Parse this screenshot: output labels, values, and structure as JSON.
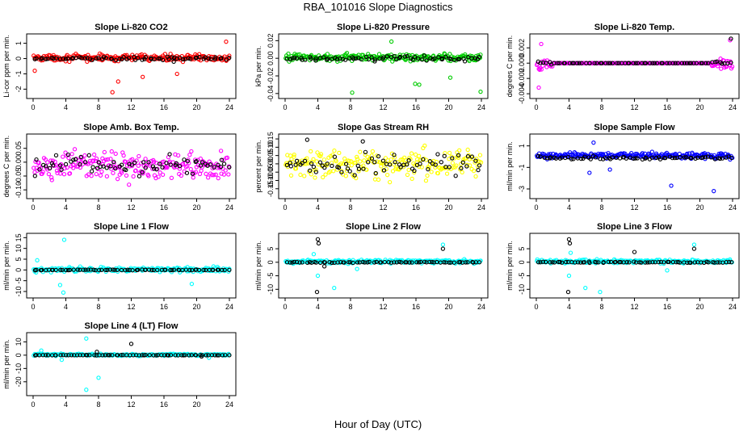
{
  "figure": {
    "title": "RBA_101016  Slope Diagnostics",
    "xlabel": "Hour of Day (UTC)"
  },
  "chart_data": [
    {
      "type": "scatter",
      "title": "Slope Li-820 CO2",
      "ylabel": "Li-cor ppm per min.",
      "xlim": [
        0,
        24
      ],
      "ylim": [
        -2.4,
        1.4
      ],
      "xticks": [
        "0",
        "4",
        "8",
        "12",
        "16",
        "20",
        "24"
      ],
      "yticks": [
        "-2",
        "-1",
        "0",
        "1"
      ],
      "series": [
        {
          "color": "#ff0000",
          "spread": 0.3,
          "center": 0.05,
          "outliers": [
            [
              9.7,
              -2.2
            ],
            [
              0.2,
              -0.8
            ],
            [
              10.4,
              -1.5
            ],
            [
              13.4,
              -1.2
            ],
            [
              17.6,
              -1.0
            ],
            [
              23.6,
              1.1
            ]
          ]
        },
        {
          "color": "#000000",
          "spread": 0.15,
          "center": 0.0,
          "outliers": [
            [
              17.2,
              -0.2
            ]
          ]
        }
      ]
    },
    {
      "type": "scatter",
      "title": "Slope Li-820 Pressure",
      "ylabel": "kPa per min.",
      "xlim": [
        0,
        24
      ],
      "ylim": [
        -0.042,
        0.024
      ],
      "xticks": [
        "0",
        "4",
        "8",
        "12",
        "16",
        "20",
        "24"
      ],
      "yticks": [
        "-0.04",
        "-0.02",
        "0.00",
        "0.02"
      ],
      "series": [
        {
          "color": "#00cc00",
          "spread": 0.006,
          "center": 0.001,
          "outliers": [
            [
              8.2,
              -0.039
            ],
            [
              15.9,
              -0.029
            ],
            [
              16.4,
              -0.03
            ],
            [
              23.9,
              -0.038
            ],
            [
              13.0,
              0.019
            ],
            [
              20.2,
              -0.022
            ]
          ]
        },
        {
          "color": "#000000",
          "spread": 0.004,
          "center": 0.0,
          "outliers": []
        }
      ]
    },
    {
      "type": "scatter",
      "title": "Slope Li-820 Temp.",
      "ylabel": "degrees C per min.",
      "xlim": [
        0,
        24
      ],
      "ylim": [
        -0.0042,
        0.0034
      ],
      "xticks": [
        "0",
        "4",
        "8",
        "12",
        "16",
        "20",
        "24"
      ],
      "yticks": [
        "-0.004",
        "-0.002",
        "0.000",
        "0.002"
      ],
      "series": [
        {
          "color": "#ff00ff",
          "spread": 0.0011,
          "center": -0.0001,
          "edge": [
            0,
            2.0,
            21.4,
            24
          ],
          "flat": 0.0,
          "outliers": [
            [
              0.6,
              0.0025
            ],
            [
              0.3,
              -0.0032
            ],
            [
              23.7,
              0.003
            ]
          ]
        },
        {
          "color": "#000000",
          "spread": 0.0004,
          "center": 0.0,
          "edge": [
            0,
            2.0,
            21.4,
            24
          ],
          "flat": 0.0,
          "outliers": [
            [
              23.8,
              0.0032
            ]
          ]
        }
      ]
    },
    {
      "type": "scatter",
      "title": "Slope Amb. Box Temp.",
      "ylabel": "degrees C per min.",
      "xlim": [
        0,
        24
      ],
      "ylim": [
        -0.12,
        0.09
      ],
      "xticks": [
        "0",
        "4",
        "8",
        "12",
        "16",
        "20",
        "24"
      ],
      "yticks": [
        "-0.10",
        "-0.05",
        "0.00",
        "0.05"
      ],
      "series": [
        {
          "color": "#ff00ff",
          "spread": 0.07,
          "center": -0.015,
          "outliers": []
        },
        {
          "color": "#000000",
          "spread": 0.05,
          "center": -0.01,
          "outliers": []
        }
      ]
    },
    {
      "type": "scatter",
      "title": "Slope Gas Stream RH",
      "ylabel": "percent per min.",
      "xlim": [
        0,
        24
      ],
      "ylim": [
        -0.19,
        0.16
      ],
      "xticks": [
        "0",
        "4",
        "8",
        "12",
        "16",
        "20",
        "24"
      ],
      "yticks": [
        "-0.15",
        "-0.10",
        "-0.05",
        "0.00",
        "0.05",
        "0.10",
        "0.15"
      ],
      "series": [
        {
          "color": "#ffff00",
          "spread": 0.13,
          "center": 0.0,
          "outliers": []
        },
        {
          "color": "#000000",
          "spread": 0.09,
          "center": 0.0,
          "outliers": [
            [
              2.7,
              0.145
            ],
            [
              9.5,
              0.135
            ]
          ]
        }
      ]
    },
    {
      "type": "scatter",
      "title": "Slope Sample Flow",
      "ylabel": "ml/min per min.",
      "xlim": [
        0,
        24
      ],
      "ylim": [
        -3.6,
        1.8
      ],
      "xticks": [
        "0",
        "4",
        "8",
        "12",
        "16",
        "20",
        "24"
      ],
      "yticks": [
        "-3",
        "-1",
        "1"
      ],
      "series": [
        {
          "color": "#0000ff",
          "spread": 0.4,
          "center": 0.1,
          "outliers": [
            [
              6.5,
              -1.5
            ],
            [
              16.5,
              -2.7
            ],
            [
              21.7,
              -3.2
            ],
            [
              9.0,
              -1.2
            ],
            [
              7.0,
              1.3
            ]
          ]
        },
        {
          "color": "#000000",
          "spread": 0.25,
          "center": -0.1,
          "outliers": []
        }
      ]
    },
    {
      "type": "scatter",
      "title": "Slope Line 1 Flow",
      "ylabel": "ml/min per min.",
      "xlim": [
        0,
        24
      ],
      "ylim": [
        -11.5,
        15.5
      ],
      "xticks": [
        "0",
        "4",
        "8",
        "12",
        "16",
        "20",
        "24"
      ],
      "yticks": [
        "-10",
        "-5",
        "0",
        "5",
        "10",
        "15"
      ],
      "series": [
        {
          "color": "#00ffff",
          "spread": 1.5,
          "center": 0.2,
          "outliers": [
            [
              3.8,
              14.0
            ],
            [
              3.7,
              -10.5
            ],
            [
              3.3,
              -7.0
            ],
            [
              19.4,
              -6.5
            ],
            [
              0.5,
              4.5
            ]
          ]
        },
        {
          "color": "#000000",
          "spread": 0.2,
          "center": 0.0,
          "outliers": []
        }
      ]
    },
    {
      "type": "scatter",
      "title": "Slope Line 2 Flow",
      "ylabel": "ml/min per min.",
      "xlim": [
        0,
        24
      ],
      "ylim": [
        -12,
        9.5
      ],
      "xticks": [
        "0",
        "4",
        "8",
        "12",
        "16",
        "20",
        "24"
      ],
      "yticks": [
        "-10",
        "-5",
        "0",
        "5"
      ],
      "series": [
        {
          "color": "#00ffff",
          "spread": 1.0,
          "center": 0.3,
          "outliers": [
            [
              4.0,
              -5.0
            ],
            [
              6.0,
              -9.5
            ],
            [
              19.3,
              6.5
            ],
            [
              3.5,
              3.0
            ],
            [
              8.8,
              -2.5
            ]
          ]
        },
        {
          "color": "#000000",
          "spread": 0.3,
          "center": 0.0,
          "outliers": [
            [
              4.0,
              8.5
            ],
            [
              4.1,
              7.0
            ],
            [
              3.9,
              -11.0
            ],
            [
              19.3,
              5.0
            ],
            [
              4.8,
              -1.5
            ]
          ]
        }
      ]
    },
    {
      "type": "scatter",
      "title": "Slope Line 3 Flow",
      "ylabel": "ml/min per min.",
      "xlim": [
        0,
        24
      ],
      "ylim": [
        -12,
        9.5
      ],
      "xticks": [
        "0",
        "4",
        "8",
        "12",
        "16",
        "20",
        "24"
      ],
      "yticks": [
        "-10",
        "-5",
        "0",
        "5"
      ],
      "series": [
        {
          "color": "#00ffff",
          "spread": 1.0,
          "center": 0.3,
          "outliers": [
            [
              4.0,
              -5.0
            ],
            [
              6.0,
              -9.5
            ],
            [
              19.3,
              6.5
            ],
            [
              7.8,
              -11.0
            ],
            [
              4.2,
              3.5
            ],
            [
              16.0,
              -3.0
            ]
          ]
        },
        {
          "color": "#000000",
          "spread": 0.3,
          "center": 0.0,
          "outliers": [
            [
              4.0,
              8.5
            ],
            [
              4.1,
              7.0
            ],
            [
              3.9,
              -11.0
            ],
            [
              19.3,
              5.0
            ],
            [
              12.0,
              3.8
            ]
          ]
        }
      ]
    },
    {
      "type": "scatter",
      "title": "Slope Line 4 (LT) Flow",
      "ylabel": "ml/min per min.",
      "xlim": [
        0,
        24
      ],
      "ylim": [
        -28,
        14.5
      ],
      "xticks": [
        "0",
        "4",
        "8",
        "12",
        "16",
        "20",
        "24"
      ],
      "yticks": [
        "-20",
        "-10",
        "0",
        "10"
      ],
      "series": [
        {
          "color": "#00ffff",
          "spread": 1.2,
          "center": 0.3,
          "outliers": [
            [
              6.5,
              -26.0
            ],
            [
              8.0,
              -17.0
            ],
            [
              6.5,
              12.5
            ],
            [
              1.0,
              3.5
            ],
            [
              3.5,
              -3.5
            ],
            [
              21.5,
              -2.0
            ]
          ]
        },
        {
          "color": "#000000",
          "spread": 0.2,
          "center": 0.0,
          "outliers": [
            [
              12.0,
              8.5
            ],
            [
              7.8,
              2.5
            ],
            [
              20.6,
              -1.0
            ]
          ]
        }
      ]
    }
  ]
}
